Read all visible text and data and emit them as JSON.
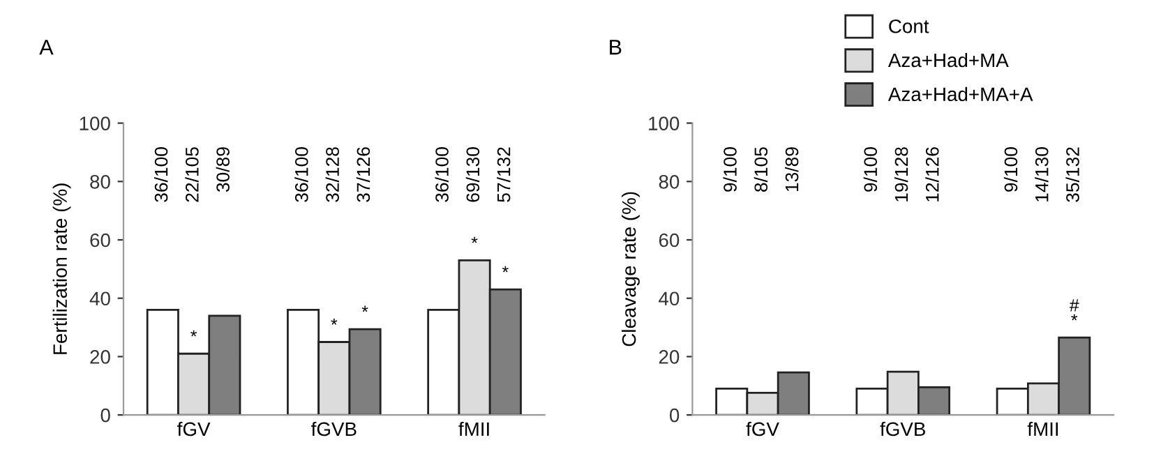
{
  "chart_data": [
    {
      "type": "bar",
      "title": "A",
      "ylabel": "Fertilization rate (%)",
      "categories": [
        "fGV",
        "fGVB",
        "fMII"
      ],
      "ylim": [
        0,
        100
      ],
      "yticks": [
        0,
        20,
        40,
        60,
        80,
        100
      ],
      "grid": false,
      "legend": false,
      "series": [
        {
          "color": "#ffffff",
          "values": [
            36,
            36,
            36
          ]
        },
        {
          "color": "#dcdcdc",
          "values": [
            21,
            25,
            53
          ]
        },
        {
          "color": "#7f7f7f",
          "values": [
            34,
            29.4,
            43
          ]
        }
      ],
      "annotations": [
        "36/100",
        "22/105",
        "30/89",
        "36/100",
        "32/128",
        "37/126",
        "36/100",
        "69/130",
        "57/132",
        {
          "text": "*",
          "x": "fGV",
          "y": 21
        },
        {
          "text": "*",
          "x": "fGVB",
          "y": 25
        },
        {
          "text": "*",
          "x": "fMII",
          "y": 53
        },
        "*",
        "*"
      ]
    },
    {
      "type": "bar",
      "title": "B",
      "ylabel": "Cleavage rate (%)",
      "categories": [
        "fGV",
        "fGVB",
        "fMII"
      ],
      "ylim": [
        0,
        100
      ],
      "yticks": [
        0,
        20,
        40,
        60,
        80,
        100
      ],
      "grid": false,
      "legend": "top right",
      "series": [
        {
          "name": "Cont",
          "color": "#ffffff",
          "values": [
            9,
            9,
            9
          ]
        },
        {
          "name": "Aza+Had+MA",
          "color": "#dcdcdc",
          "values": [
            7.6,
            14.8,
            10.8
          ]
        },
        {
          "name": "Aza+Had+MA+A",
          "color": "#7f7f7f",
          "values": [
            14.6,
            9.5,
            26.5
          ]
        }
      ],
      "annotations": [
        "9/100",
        "8/105",
        "13/89",
        "9/100",
        "19/128",
        "12/126",
        "9/100",
        "14/130",
        "35/132",
        "#\n*"
      ]
    }
  ]
}
